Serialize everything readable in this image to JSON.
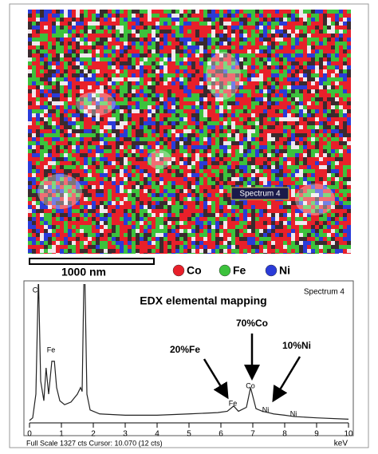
{
  "image": {
    "label": "Spectrum 4",
    "scale_bar": "1000 nm"
  },
  "legend": [
    {
      "name": "Co",
      "color": "#e8202a"
    },
    {
      "name": "Fe",
      "color": "#3cc23c"
    },
    {
      "name": "Ni",
      "color": "#2a3bd8"
    }
  ],
  "chart_data": {
    "type": "line",
    "title": "EDX elemental mapping",
    "spectrum_name": "Spectrum 4",
    "x": [
      0,
      0.1,
      0.2,
      0.28,
      0.35,
      0.45,
      0.52,
      0.6,
      0.7,
      0.78,
      0.85,
      0.95,
      1.1,
      1.3,
      1.5,
      1.6,
      1.65,
      1.72,
      1.8,
      1.9,
      2.2,
      3,
      4,
      5,
      5.9,
      6.2,
      6.4,
      6.55,
      6.8,
      6.93,
      7.1,
      7.3,
      7.48,
      7.65,
      8,
      8.3,
      9,
      10
    ],
    "values": [
      0,
      2,
      20,
      110,
      30,
      15,
      40,
      20,
      45,
      45,
      25,
      15,
      12,
      14,
      20,
      25,
      22,
      130,
      20,
      8,
      5,
      4,
      4,
      5,
      6,
      7,
      11,
      7,
      10,
      25,
      9,
      7,
      6,
      5,
      4,
      3,
      2,
      1
    ],
    "color": "#222222",
    "xlim": [
      0,
      10
    ],
    "xticks": [
      0,
      1,
      2,
      3,
      4,
      5,
      6,
      7,
      8,
      9,
      10
    ],
    "ylim": [
      0,
      100
    ],
    "x_label": "keV",
    "footer": "Full Scale 1327 cts Cursor: 10.070  (12 cts)",
    "peak_labels": [
      "C",
      "Fe",
      "Fe",
      "Co",
      "Ni",
      "Ni"
    ],
    "annotations": [
      "70%Co",
      "20%Fe",
      "10%Ni"
    ]
  }
}
